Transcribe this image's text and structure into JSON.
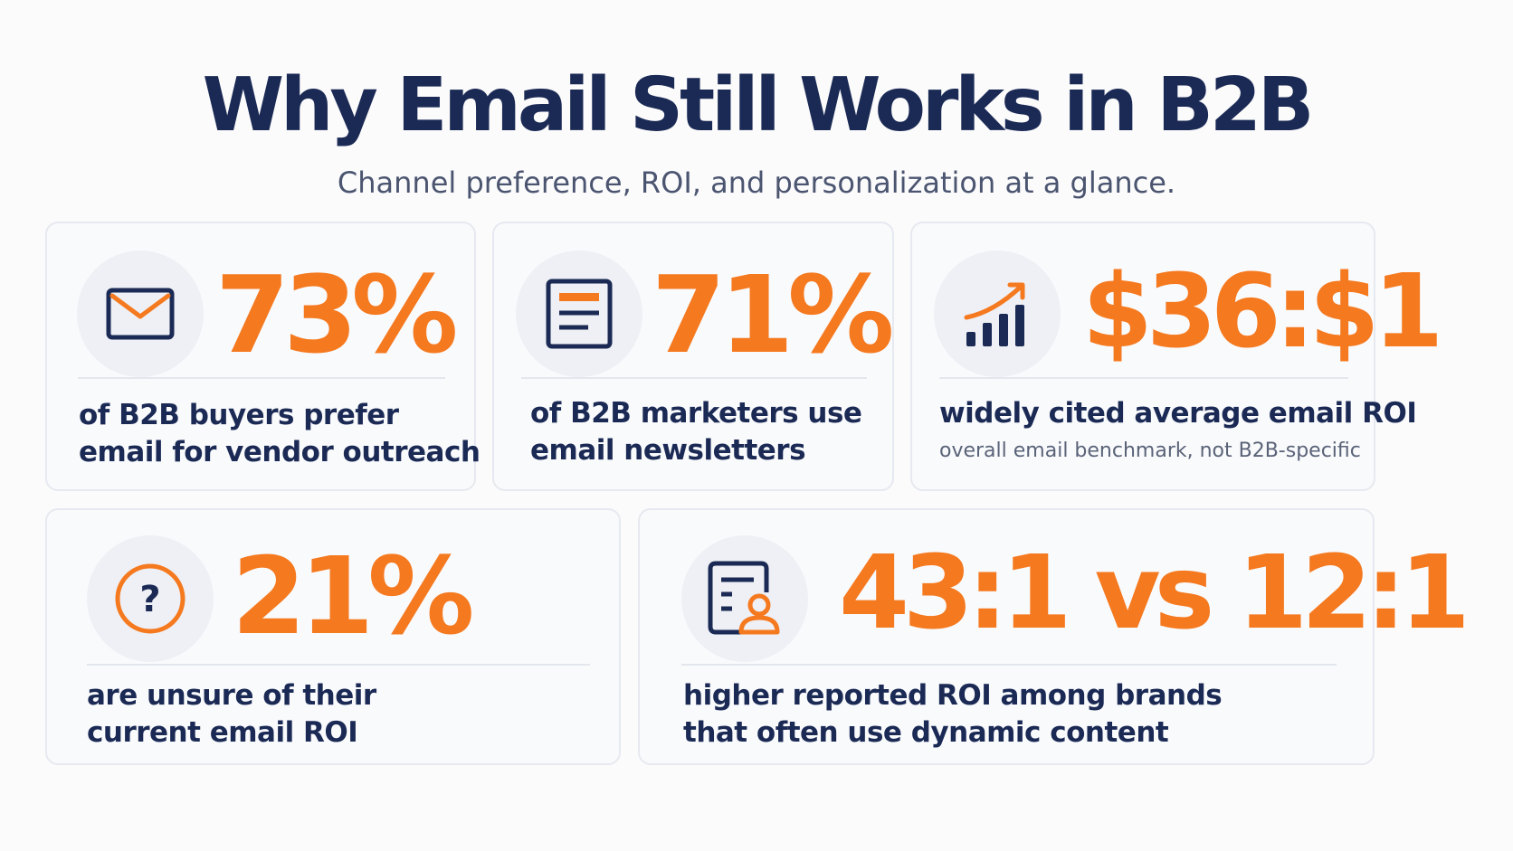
{
  "header": {
    "title": "Why Email Still Works in B2B",
    "subtitle": "Channel preference, ROI, and personalization at a glance."
  },
  "colors": {
    "navy": "#1b2a55",
    "orange": "#f5791f",
    "card_bg": "#f9fafc",
    "card_border": "#e6e9ef",
    "icon_bg": "#eef0f5"
  },
  "cards": [
    {
      "icon": "envelope-icon",
      "stat": "73%",
      "desc_lines": [
        "of B2B buyers prefer",
        "email for vendor outreach"
      ]
    },
    {
      "icon": "newsletter-icon",
      "stat": "71%",
      "desc_lines": [
        "of B2B marketers use",
        "email newsletters"
      ]
    },
    {
      "icon": "growth-chart-icon",
      "stat": "$36:$1",
      "desc_lines": [
        "widely cited average email ROI"
      ],
      "note": "overall email benchmark, not B2B-specific"
    },
    {
      "icon": "question-icon",
      "stat": "21%",
      "desc_lines": [
        "are unsure of their",
        "current email ROI"
      ]
    },
    {
      "icon": "personalized-content-icon",
      "stat": "43:1 vs 12:1",
      "desc_lines": [
        "higher reported ROI among brands",
        "that often use dynamic content"
      ]
    }
  ]
}
